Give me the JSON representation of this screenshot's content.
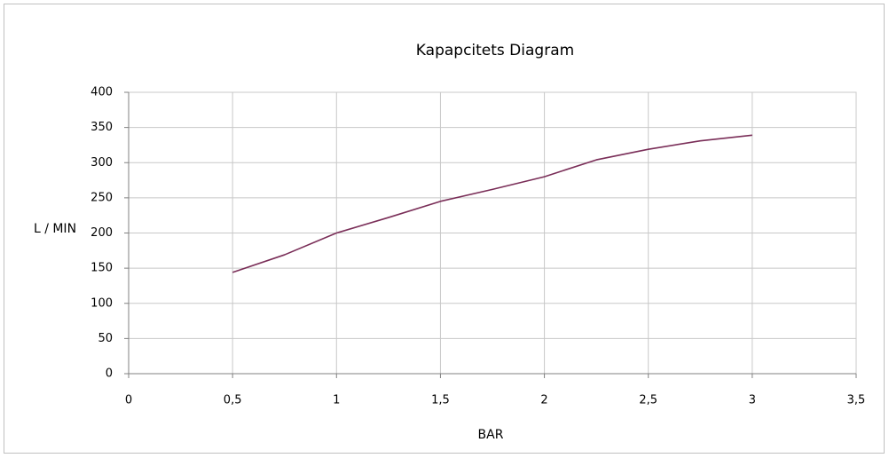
{
  "chart_data": {
    "type": "line",
    "title": "Kapapcitets Diagram",
    "x_label": "BAR",
    "y_label": "L / MIN",
    "x": [
      0.5,
      0.75,
      1,
      1.25,
      1.5,
      1.75,
      2,
      2.25,
      2.5,
      2.75,
      3
    ],
    "series": [
      {
        "name": "L / MIN",
        "color": "#7a2e58",
        "values": [
          144,
          169,
          200,
          222,
          245,
          262,
          280,
          304,
          319,
          331,
          339
        ]
      }
    ],
    "xlim": [
      0,
      3.5
    ],
    "xticks": [
      0,
      {
        "value": 0.5,
        "label": "0,5"
      },
      1,
      {
        "value": 1.5,
        "label": "1,5"
      },
      2,
      {
        "value": 2.5,
        "label": "2,5"
      },
      3,
      {
        "value": 3.5,
        "label": "3,5"
      }
    ],
    "ylim": [
      0,
      400
    ],
    "yticks": [
      0,
      50,
      100,
      150,
      200,
      250,
      300,
      350,
      400
    ],
    "grid": true
  }
}
